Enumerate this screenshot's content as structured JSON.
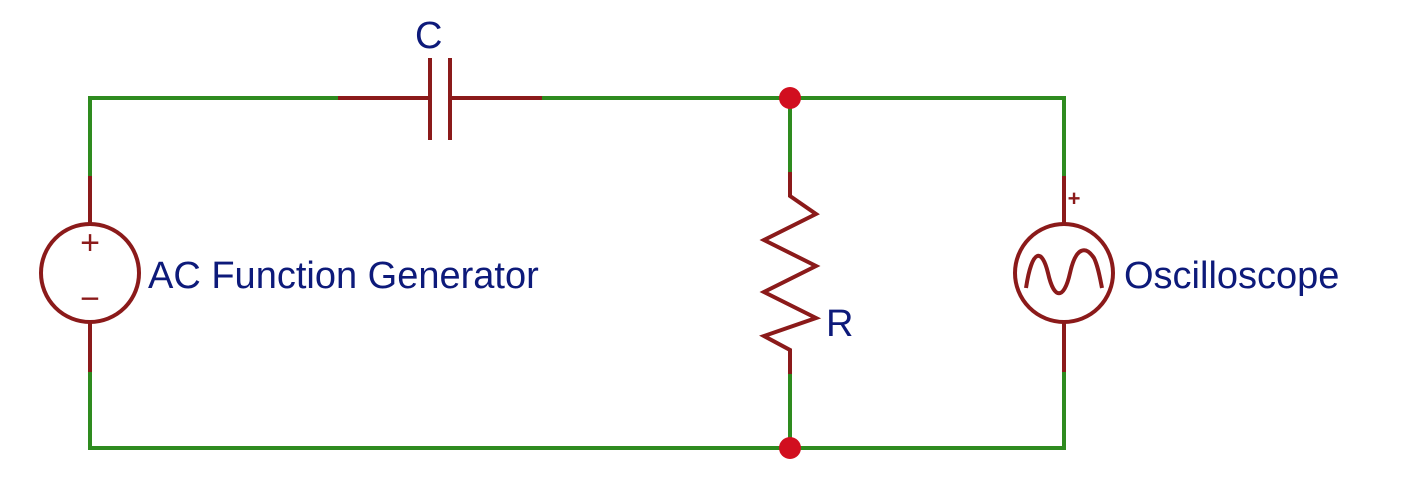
{
  "labels": {
    "capacitor": "C",
    "resistor": "R",
    "generator": "AC Function Generator",
    "oscilloscope": "Oscilloscope"
  },
  "symbols": {
    "generator_plus": "+",
    "generator_minus": "−",
    "oscilloscope_plus": "+"
  },
  "colors": {
    "wire": "#2e8b1f",
    "component": "#8b1a1a",
    "node": "#d10f1f",
    "text": "#0d1a7a"
  }
}
